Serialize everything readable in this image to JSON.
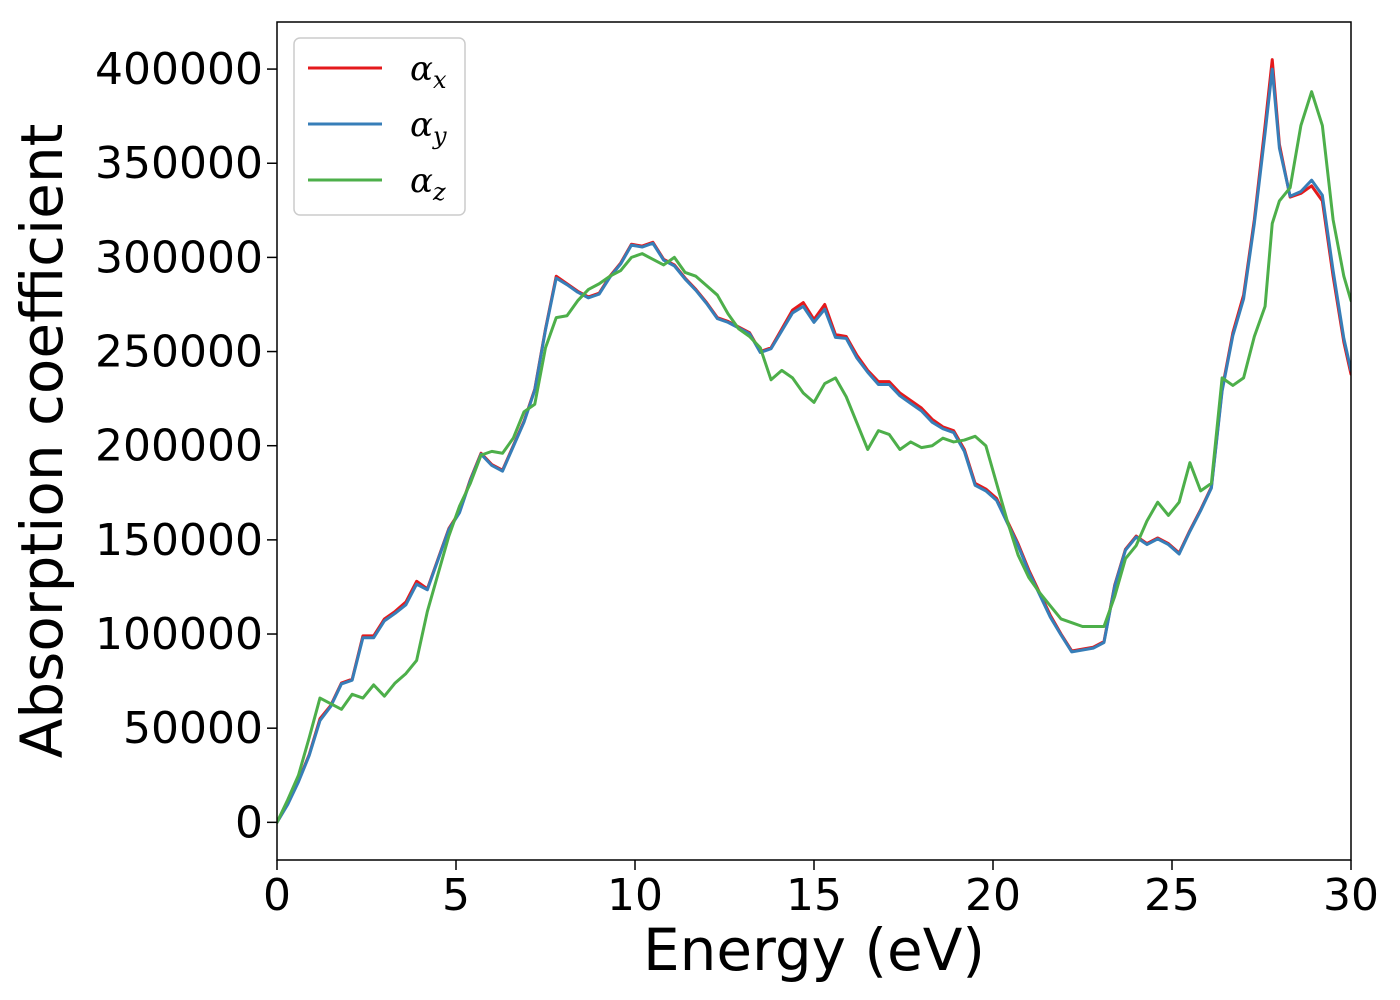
{
  "chart_data": {
    "type": "line",
    "title": "",
    "xlabel": "Energy (eV)",
    "ylabel": "Absorption coefficient",
    "xlim": [
      0,
      30
    ],
    "ylim": [
      -20000,
      425000
    ],
    "xticks": [
      0,
      5,
      10,
      15,
      20,
      25,
      30
    ],
    "xtick_labels": [
      "0",
      "5",
      "10",
      "15",
      "20",
      "25",
      "30"
    ],
    "yticks": [
      0,
      50000,
      100000,
      150000,
      200000,
      250000,
      300000,
      350000,
      400000
    ],
    "ytick_labels": [
      "0",
      "50000",
      "100000",
      "150000",
      "200000",
      "250000",
      "300000",
      "350000",
      "400000"
    ],
    "grid": false,
    "legend_position": "top-left",
    "series": [
      {
        "name": "αx",
        "symbol": "α",
        "subscript": "x",
        "color": "#e41a1c",
        "x": [
          0,
          0.3,
          0.6,
          0.9,
          1.2,
          1.5,
          1.8,
          2.1,
          2.4,
          2.7,
          3.0,
          3.3,
          3.6,
          3.9,
          4.2,
          4.5,
          4.8,
          5.1,
          5.4,
          5.7,
          6.0,
          6.3,
          6.6,
          6.9,
          7.2,
          7.5,
          7.8,
          8.1,
          8.4,
          8.7,
          9.0,
          9.3,
          9.6,
          9.9,
          10.2,
          10.5,
          10.8,
          11.1,
          11.4,
          11.7,
          12.0,
          12.3,
          12.6,
          12.9,
          13.2,
          13.5,
          13.8,
          14.1,
          14.4,
          14.7,
          15.0,
          15.3,
          15.6,
          15.9,
          16.2,
          16.5,
          16.8,
          17.1,
          17.4,
          17.7,
          18.0,
          18.3,
          18.6,
          18.9,
          19.2,
          19.5,
          19.8,
          20.1,
          20.4,
          20.7,
          21.0,
          21.3,
          21.6,
          21.9,
          22.2,
          22.5,
          22.8,
          23.1,
          23.4,
          23.7,
          24.0,
          24.3,
          24.6,
          24.9,
          25.2,
          25.5,
          25.8,
          26.1,
          26.4,
          26.7,
          27.0,
          27.3,
          27.6,
          27.8,
          28.0,
          28.3,
          28.6,
          28.9,
          29.2,
          29.5,
          29.8,
          30.0
        ],
        "values": [
          0,
          10000,
          22000,
          36000,
          55000,
          62000,
          74000,
          76000,
          99000,
          99000,
          108000,
          112000,
          117000,
          128000,
          124000,
          140000,
          156000,
          165000,
          182000,
          196000,
          190000,
          187000,
          200000,
          213000,
          230000,
          262000,
          290000,
          286000,
          282000,
          279000,
          281000,
          290000,
          297000,
          307000,
          306000,
          308000,
          299000,
          296000,
          289000,
          283000,
          276000,
          268000,
          266000,
          263000,
          260000,
          250000,
          252000,
          262000,
          272000,
          276000,
          267000,
          275000,
          259000,
          258000,
          248000,
          240000,
          234000,
          234000,
          228000,
          224000,
          220000,
          214000,
          210000,
          208000,
          198000,
          180000,
          177000,
          172000,
          160000,
          148000,
          134000,
          122000,
          110000,
          100000,
          91000,
          92000,
          93000,
          96000,
          126000,
          145000,
          152000,
          148000,
          151000,
          148000,
          143000,
          155000,
          166000,
          178000,
          230000,
          260000,
          280000,
          320000,
          370000,
          405000,
          360000,
          332000,
          334000,
          338000,
          330000,
          290000,
          255000,
          238000
        ]
      },
      {
        "name": "αy",
        "symbol": "α",
        "subscript": "y",
        "color": "#377eb8",
        "x": [
          0,
          0.3,
          0.6,
          0.9,
          1.2,
          1.5,
          1.8,
          2.1,
          2.4,
          2.7,
          3.0,
          3.3,
          3.6,
          3.9,
          4.2,
          4.5,
          4.8,
          5.1,
          5.4,
          5.7,
          6.0,
          6.3,
          6.6,
          6.9,
          7.2,
          7.5,
          7.8,
          8.1,
          8.4,
          8.7,
          9.0,
          9.3,
          9.6,
          9.9,
          10.2,
          10.5,
          10.8,
          11.1,
          11.4,
          11.7,
          12.0,
          12.3,
          12.6,
          12.9,
          13.2,
          13.5,
          13.8,
          14.1,
          14.4,
          14.7,
          15.0,
          15.3,
          15.6,
          15.9,
          16.2,
          16.5,
          16.8,
          17.1,
          17.4,
          17.7,
          18.0,
          18.3,
          18.6,
          18.9,
          19.2,
          19.5,
          19.8,
          20.1,
          20.4,
          20.7,
          21.0,
          21.3,
          21.6,
          21.9,
          22.2,
          22.5,
          22.8,
          23.1,
          23.4,
          23.7,
          24.0,
          24.3,
          24.6,
          24.9,
          25.2,
          25.5,
          25.8,
          26.1,
          26.4,
          26.7,
          27.0,
          27.3,
          27.6,
          27.8,
          28.0,
          28.3,
          28.6,
          28.9,
          29.2,
          29.5,
          29.8,
          30.0
        ],
        "values": [
          0,
          9500,
          21500,
          35500,
          54000,
          61500,
          73500,
          75500,
          98000,
          98000,
          107000,
          111000,
          115500,
          126500,
          123500,
          139500,
          155500,
          164500,
          181500,
          195500,
          189500,
          186500,
          199500,
          212500,
          229500,
          261500,
          289000,
          285500,
          281500,
          278500,
          280500,
          289500,
          296500,
          306500,
          305500,
          307500,
          298500,
          295500,
          288500,
          282500,
          275500,
          267500,
          265500,
          262500,
          259500,
          249500,
          251500,
          261000,
          270500,
          274000,
          265500,
          272500,
          257500,
          257000,
          246500,
          239000,
          232500,
          232500,
          226500,
          222500,
          218500,
          212500,
          209000,
          207000,
          197000,
          179000,
          176000,
          171000,
          159000,
          147000,
          133000,
          121000,
          109000,
          99500,
          90500,
          91500,
          92500,
          95500,
          125500,
          144500,
          151500,
          147500,
          150500,
          147500,
          142500,
          154500,
          165500,
          177500,
          229000,
          258500,
          278000,
          318000,
          366000,
          400000,
          358000,
          332500,
          335000,
          341000,
          333000,
          293000,
          257000,
          240000
        ]
      },
      {
        "name": "αz",
        "symbol": "α",
        "subscript": "z",
        "color": "#4daf4a",
        "x": [
          0,
          0.3,
          0.6,
          0.9,
          1.2,
          1.5,
          1.8,
          2.1,
          2.4,
          2.7,
          3.0,
          3.3,
          3.6,
          3.9,
          4.2,
          4.5,
          4.8,
          5.1,
          5.4,
          5.7,
          6.0,
          6.3,
          6.6,
          6.9,
          7.2,
          7.5,
          7.8,
          8.1,
          8.4,
          8.7,
          9.0,
          9.3,
          9.6,
          9.9,
          10.2,
          10.5,
          10.8,
          11.1,
          11.4,
          11.7,
          12.0,
          12.3,
          12.6,
          12.9,
          13.2,
          13.5,
          13.8,
          14.1,
          14.4,
          14.7,
          15.0,
          15.3,
          15.6,
          15.9,
          16.2,
          16.5,
          16.8,
          17.1,
          17.4,
          17.7,
          18.0,
          18.3,
          18.6,
          18.9,
          19.2,
          19.5,
          19.8,
          20.1,
          20.4,
          20.7,
          21.0,
          21.3,
          21.6,
          21.9,
          22.2,
          22.5,
          22.8,
          23.1,
          23.4,
          23.7,
          24.0,
          24.3,
          24.6,
          24.9,
          25.2,
          25.5,
          25.8,
          26.1,
          26.4,
          26.7,
          27.0,
          27.3,
          27.6,
          27.8,
          28.0,
          28.3,
          28.6,
          28.9,
          29.2,
          29.5,
          29.8,
          30.0
        ],
        "values": [
          0,
          12000,
          25000,
          45000,
          66000,
          63000,
          60000,
          68000,
          66000,
          73000,
          67000,
          74000,
          79000,
          86000,
          112000,
          132000,
          152000,
          168000,
          180000,
          195000,
          197000,
          196000,
          204000,
          218000,
          222000,
          252000,
          268000,
          269000,
          277000,
          283000,
          286000,
          290000,
          293000,
          300000,
          302000,
          299000,
          296000,
          300000,
          292000,
          290000,
          285000,
          280000,
          270000,
          262000,
          258000,
          252000,
          235000,
          240000,
          236000,
          228000,
          223000,
          233000,
          236000,
          226000,
          212000,
          198000,
          208000,
          206000,
          198000,
          202000,
          199000,
          200000,
          204000,
          202000,
          203000,
          205000,
          200000,
          180000,
          160000,
          142000,
          130000,
          122000,
          115000,
          108000,
          106000,
          104000,
          104000,
          104000,
          120000,
          140000,
          147000,
          160000,
          170000,
          163000,
          170000,
          191000,
          176000,
          180000,
          236000,
          232000,
          236000,
          258000,
          274000,
          318000,
          330000,
          337000,
          370000,
          388000,
          370000,
          320000,
          290000,
          277000
        ]
      }
    ]
  }
}
